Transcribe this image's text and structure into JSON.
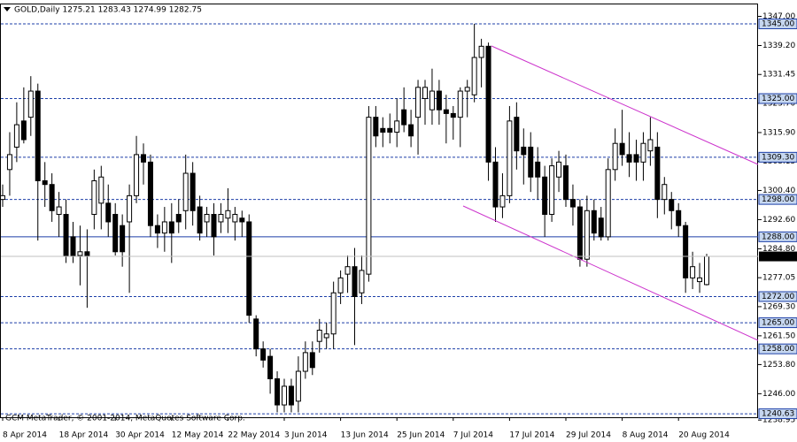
{
  "chart_data": {
    "type": "candlestick",
    "title": "GOLD,Daily  1275.21 1283.43 1274.99 1282.75",
    "annotation": "GCM MetaTrader, © 2001-2014, MetaQuotes Software Corp.",
    "categories": [
      "8 Apr 2014",
      null,
      null,
      null,
      null,
      null,
      null,
      null,
      "18 Apr 2014",
      null,
      null,
      null,
      null,
      null,
      null,
      null,
      "30 Apr 2014",
      null,
      null,
      null,
      null,
      null,
      null,
      null,
      "12 May 2014",
      null,
      null,
      null,
      null,
      null,
      null,
      null,
      "22 May 2014",
      null,
      null,
      null,
      null,
      null,
      null,
      null,
      "3 Jun 2014",
      null,
      null,
      null,
      null,
      null,
      null,
      null,
      "13 Jun 2014",
      null,
      null,
      null,
      null,
      null,
      null,
      null,
      "25 Jun 2014",
      null,
      null,
      null,
      null,
      null,
      null,
      null,
      "7 Jul 2014",
      null,
      null,
      null,
      null,
      null,
      null,
      null,
      "17 Jul 2014",
      null,
      null,
      null,
      null,
      null,
      null,
      null,
      "29 Jul 2014",
      null,
      null,
      null,
      null,
      null,
      null,
      null,
      "8 Aug 2014",
      null,
      null,
      null,
      null,
      null,
      null,
      null,
      "20 Aug 2014",
      null,
      null,
      null,
      null
    ],
    "open": [
      1298,
      1306,
      1312,
      1319,
      1320,
      1327,
      1303,
      1302,
      1294,
      1294,
      1288,
      1283,
      1284,
      1294,
      1297,
      1297,
      1294,
      1291,
      1292,
      1299,
      1310,
      1308,
      1291,
      1289,
      1292,
      1294,
      1295,
      1305,
      1296,
      1292,
      1294,
      1292,
      1293,
      1292,
      1293,
      1292,
      1266,
      1258,
      1256,
      1250,
      1243,
      1248,
      1244,
      1252,
      1257,
      1260,
      1261,
      1262,
      1273,
      1278,
      1280,
      1273,
      1278,
      1320,
      1317,
      1317,
      1316,
      1322,
      1318,
      1320,
      1325,
      1322,
      1327,
      1322,
      1321,
      1320,
      1327,
      1326,
      1336,
      1339,
      1308,
      1296,
      1299,
      1320,
      1312,
      1312,
      1308,
      1304,
      1294,
      1304,
      1307,
      1298,
      1296,
      1282,
      1295,
      1293,
      1288,
      1306,
      1313,
      1310,
      1310,
      1308,
      1311,
      1312,
      1298,
      1298,
      1295,
      1291,
      1277,
      1276,
      1275.21
    ],
    "high": [
      1302,
      1316,
      1324,
      1328,
      1331,
      1329,
      1308,
      1305,
      1300,
      1298,
      1292,
      1291,
      1290,
      1306,
      1307,
      1302,
      1297,
      1294,
      1302,
      1315,
      1313,
      1310,
      1294,
      1296,
      1297,
      1298,
      1310,
      1308,
      1299,
      1296,
      1297,
      1297,
      1301,
      1296,
      1295,
      1294,
      1267,
      1260,
      1258,
      1252,
      1250,
      1250,
      1256,
      1260,
      1260,
      1266,
      1265,
      1276,
      1279,
      1283,
      1285,
      1283,
      1323,
      1323,
      1320,
      1321,
      1325,
      1328,
      1322,
      1330,
      1330,
      1333,
      1330,
      1326,
      1323,
      1328,
      1330,
      1345,
      1341,
      1340,
      1312,
      1305,
      1323,
      1324,
      1317,
      1316,
      1312,
      1307,
      1309,
      1311,
      1310,
      1302,
      1298,
      1299,
      1298,
      1296,
      1309,
      1317,
      1322,
      1316,
      1314,
      1316,
      1320,
      1316,
      1304,
      1300,
      1297,
      1292,
      1284,
      1281,
      1283.43
    ],
    "low": [
      1296,
      1299,
      1308,
      1313,
      1315,
      1287,
      1296,
      1292,
      1288,
      1281,
      1281,
      1275,
      1269,
      1290,
      1290,
      1288,
      1283,
      1280,
      1273,
      1297,
      1302,
      1288,
      1285,
      1284,
      1281,
      1289,
      1290,
      1291,
      1287,
      1288,
      1283,
      1289,
      1289,
      1287,
      1288,
      1265,
      1256,
      1253,
      1246,
      1241,
      1241,
      1241,
      1241,
      1250,
      1251,
      1257,
      1258,
      1258,
      1270,
      1273,
      1259,
      1270,
      1276,
      1312,
      1312,
      1313,
      1312,
      1316,
      1312,
      1310,
      1318,
      1318,
      1318,
      1313,
      1314,
      1312,
      1320,
      1324,
      1328,
      1303,
      1292,
      1293,
      1297,
      1306,
      1302,
      1300,
      1298,
      1288,
      1292,
      1300,
      1296,
      1291,
      1280,
      1280,
      1287,
      1287,
      1287,
      1303,
      1307,
      1304,
      1303,
      1303,
      1307,
      1293,
      1294,
      1290,
      1288,
      1273,
      1274,
      1273,
      1274.99
    ],
    "close": [
      1299,
      1310,
      1318,
      1314,
      1327,
      1303,
      1302,
      1295,
      1296,
      1283,
      1283,
      1284,
      1283,
      1303,
      1304,
      1292,
      1284,
      1284,
      1299,
      1310,
      1308,
      1291,
      1289,
      1292,
      1289,
      1292,
      1305,
      1295,
      1289,
      1294,
      1288,
      1294,
      1295,
      1294,
      1292,
      1267,
      1258,
      1255,
      1250,
      1243,
      1248,
      1243,
      1252,
      1257,
      1253,
      1263,
      1262,
      1273,
      1277,
      1280,
      1272,
      1279,
      1320,
      1315,
      1316,
      1316,
      1319,
      1318,
      1315,
      1328,
      1328,
      1327,
      1322,
      1321,
      1320,
      1327,
      1328,
      1336,
      1339,
      1308,
      1296,
      1299,
      1319,
      1311,
      1310,
      1304,
      1304,
      1294,
      1307,
      1308,
      1298,
      1296,
      1282,
      1295,
      1289,
      1288,
      1306,
      1313,
      1310,
      1308,
      1308,
      1313,
      1314,
      1298,
      1302,
      1295,
      1291,
      1277,
      1280,
      1277,
      1282.75
    ],
    "ylim": [
      1239.7,
      1350.2
    ],
    "yticks": [
      {
        "value": 1347,
        "label": "1347.00"
      },
      {
        "value": 1339.2,
        "label": "1339.20"
      },
      {
        "value": 1331.45,
        "label": "1331.45"
      },
      {
        "value": 1323.7,
        "label": "1323.70"
      },
      {
        "value": 1315.9,
        "label": "1315.90"
      },
      {
        "value": 1308.15,
        "label": "1308.15"
      },
      {
        "value": 1300.4,
        "label": "1300.40"
      },
      {
        "value": 1292.6,
        "label": "1292.60"
      },
      {
        "value": 1284.8,
        "label": "1284.80"
      },
      {
        "value": 1277.05,
        "label": "1277.05"
      },
      {
        "value": 1269.3,
        "label": "1269.30"
      },
      {
        "value": 1261.5,
        "label": "1261.50"
      },
      {
        "value": 1253.8,
        "label": "1253.80"
      },
      {
        "value": 1246,
        "label": "1246.00"
      },
      {
        "value": 1238.95,
        "label": "1238.95"
      }
    ],
    "levels": [
      {
        "value": 1345,
        "label": "1345.00",
        "dashed": true
      },
      {
        "value": 1325,
        "label": "1325.00",
        "dashed": true
      },
      {
        "value": 1309.3,
        "label": "1309.30",
        "dashed": true
      },
      {
        "value": 1298,
        "label": "1298.00",
        "dashed": true
      },
      {
        "value": 1288,
        "label": "1288.00",
        "dashed": false
      },
      {
        "value": 1272,
        "label": "1272.00",
        "dashed": true
      },
      {
        "value": 1265,
        "label": "1265.00",
        "dashed": true
      },
      {
        "value": 1258,
        "label": "1258.00",
        "dashed": true
      },
      {
        "value": 1240.63,
        "label": "1240.63",
        "dashed": true
      }
    ],
    "level_color": "#1c3fa8",
    "last": {
      "value": 1282.75,
      "label": "1282.75"
    },
    "bull_color": "#ffffff",
    "bear_color": "#000000"
  }
}
